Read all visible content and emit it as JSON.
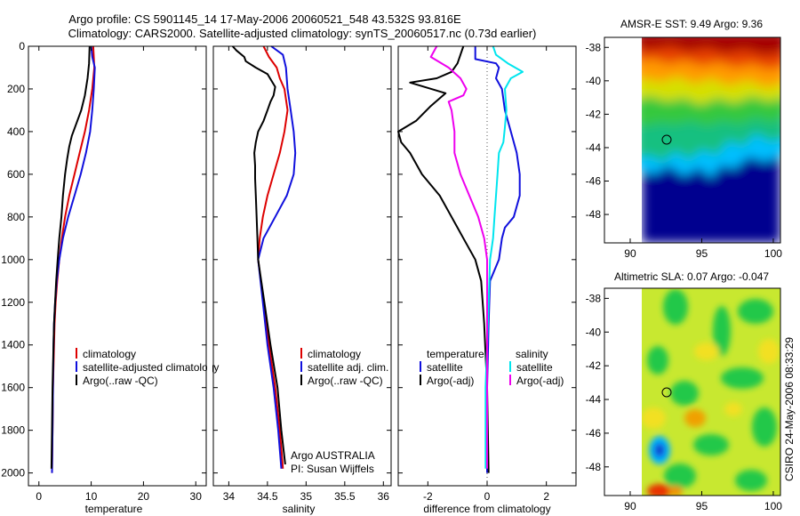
{
  "title_line1": "Argo profile: CS 5901145_14 17-May-2006 20060521_548 43.532S 93.816E",
  "title_line2": "Climatology: CARS2000. Satellite-adjusted climatology: synTS_20060517.nc (0.73d earlier)",
  "side_credit": "CSIRO 24-May-2006 08:33:29",
  "colors": {
    "climatology": "#dd0000",
    "satellite": "#1010dd",
    "argo": "#000000",
    "satellite_sal": "#00e5ee",
    "argo_sal": "#ee00ee"
  },
  "chart_data": [
    {
      "type": "line",
      "xlabel": "temperature",
      "ylabel": "",
      "xlim": [
        -2,
        32
      ],
      "ylim": [
        2060,
        0
      ],
      "x_ticks": [
        "0",
        "10",
        "20",
        "30"
      ],
      "y_ticks": [
        "0",
        "200",
        "400",
        "600",
        "800",
        "1000",
        "1200",
        "1400",
        "1600",
        "1800",
        "2000"
      ],
      "legend": {
        "position": "right-middle",
        "entries": [
          "climatology",
          "satellite-adjusted climatology",
          "Argo(..raw -QC)"
        ]
      },
      "series": [
        {
          "name": "climatology",
          "color": "#dd0000",
          "points": [
            [
              10.4,
              0
            ],
            [
              10.5,
              50
            ],
            [
              10.6,
              100
            ],
            [
              10.2,
              200
            ],
            [
              9.6,
              300
            ],
            [
              8.8,
              400
            ],
            [
              7.8,
              500
            ],
            [
              6.8,
              600
            ],
            [
              5.8,
              700
            ],
            [
              5.0,
              800
            ],
            [
              4.4,
              900
            ],
            [
              3.9,
              1000
            ],
            [
              3.5,
              1100
            ],
            [
              3.2,
              1200
            ],
            [
              3.0,
              1300
            ],
            [
              2.9,
              1400
            ],
            [
              2.7,
              1600
            ],
            [
              2.6,
              1800
            ],
            [
              2.5,
              2000
            ]
          ]
        },
        {
          "name": "satellite-adjusted climatology",
          "color": "#1010dd",
          "points": [
            [
              10.0,
              0
            ],
            [
              10.2,
              50
            ],
            [
              10.7,
              100
            ],
            [
              10.5,
              200
            ],
            [
              10.2,
              300
            ],
            [
              9.8,
              400
            ],
            [
              9.0,
              500
            ],
            [
              8.0,
              600
            ],
            [
              6.8,
              700
            ],
            [
              5.6,
              800
            ],
            [
              4.6,
              900
            ],
            [
              3.9,
              1000
            ],
            [
              3.4,
              1100
            ],
            [
              3.1,
              1200
            ],
            [
              2.9,
              1300
            ],
            [
              2.8,
              1400
            ],
            [
              2.7,
              1600
            ],
            [
              2.6,
              1800
            ],
            [
              2.5,
              2000
            ]
          ]
        },
        {
          "name": "Argo(..raw -QC)",
          "color": "#000000",
          "points": [
            [
              9.7,
              0
            ],
            [
              9.6,
              80
            ],
            [
              9.3,
              150
            ],
            [
              8.8,
              230
            ],
            [
              8.1,
              300
            ],
            [
              7.2,
              360
            ],
            [
              6.3,
              420
            ],
            [
              5.8,
              470
            ],
            [
              5.4,
              530
            ],
            [
              5.0,
              600
            ],
            [
              4.6,
              700
            ],
            [
              4.3,
              800
            ],
            [
              3.9,
              900
            ],
            [
              3.6,
              1000
            ],
            [
              3.3,
              1100
            ],
            [
              3.1,
              1200
            ],
            [
              2.9,
              1300
            ],
            [
              2.8,
              1400
            ],
            [
              2.6,
              1600
            ],
            [
              2.5,
              1800
            ],
            [
              2.4,
              1980
            ]
          ]
        }
      ]
    },
    {
      "type": "line",
      "xlabel": "salinity",
      "ylabel": "",
      "xlim": [
        33.8,
        36.1
      ],
      "ylim": [
        2060,
        0
      ],
      "x_ticks": [
        "34",
        "34.5",
        "35",
        "35.5",
        "36"
      ],
      "legend": {
        "position": "right-middle",
        "entries": [
          "climatology",
          "satellite adj. clim.",
          "Argo(..raw -QC)"
        ]
      },
      "annotations": [
        "Argo AUSTRALIA",
        "PI: Susan Wijffels"
      ],
      "series": [
        {
          "name": "climatology",
          "color": "#dd0000",
          "points": [
            [
              34.45,
              0
            ],
            [
              34.52,
              50
            ],
            [
              34.62,
              100
            ],
            [
              34.66,
              150
            ],
            [
              34.72,
              200
            ],
            [
              34.76,
              300
            ],
            [
              34.72,
              400
            ],
            [
              34.66,
              500
            ],
            [
              34.58,
              600
            ],
            [
              34.5,
              700
            ],
            [
              34.44,
              800
            ],
            [
              34.4,
              900
            ],
            [
              34.38,
              1000
            ],
            [
              34.45,
              1200
            ],
            [
              34.52,
              1400
            ],
            [
              34.6,
              1600
            ],
            [
              34.66,
              1800
            ],
            [
              34.7,
              1980
            ]
          ]
        },
        {
          "name": "satellite adj. clim.",
          "color": "#1010dd",
          "points": [
            [
              34.55,
              0
            ],
            [
              34.7,
              40
            ],
            [
              34.74,
              100
            ],
            [
              34.76,
              200
            ],
            [
              34.8,
              300
            ],
            [
              34.84,
              400
            ],
            [
              34.86,
              500
            ],
            [
              34.84,
              600
            ],
            [
              34.75,
              700
            ],
            [
              34.6,
              800
            ],
            [
              34.45,
              900
            ],
            [
              34.38,
              1000
            ],
            [
              34.44,
              1200
            ],
            [
              34.5,
              1400
            ],
            [
              34.58,
              1600
            ],
            [
              34.64,
              1800
            ],
            [
              34.68,
              1980
            ]
          ]
        },
        {
          "name": "Argo(..raw -QC)",
          "color": "#000000",
          "points": [
            [
              34.05,
              0
            ],
            [
              34.1,
              20
            ],
            [
              34.2,
              50
            ],
            [
              34.22,
              70
            ],
            [
              34.35,
              100
            ],
            [
              34.5,
              130
            ],
            [
              34.55,
              160
            ],
            [
              34.6,
              190
            ],
            [
              34.58,
              230
            ],
            [
              34.54,
              260
            ],
            [
              34.5,
              300
            ],
            [
              34.45,
              350
            ],
            [
              34.38,
              400
            ],
            [
              34.35,
              450
            ],
            [
              34.33,
              500
            ],
            [
              34.34,
              560
            ],
            [
              34.34,
              620
            ],
            [
              34.35,
              700
            ],
            [
              34.36,
              800
            ],
            [
              34.37,
              900
            ],
            [
              34.38,
              1000
            ],
            [
              34.46,
              1200
            ],
            [
              34.54,
              1400
            ],
            [
              34.63,
              1600
            ],
            [
              34.68,
              1800
            ],
            [
              34.73,
              1960
            ]
          ]
        }
      ]
    },
    {
      "type": "line",
      "xlabel": "difference from climatology",
      "ylabel": "",
      "xlim": [
        -3,
        3
      ],
      "ylim": [
        2060,
        0
      ],
      "x_ticks": [
        "-2",
        "0",
        "2"
      ],
      "legend": {
        "position": "bottom",
        "temperature_title": "temperature",
        "salinity_title": "salinity",
        "entries": [
          "satellite",
          "Argo(-adj)",
          "satellite",
          "Argo(-adj)"
        ]
      },
      "series": [
        {
          "name": "temperature satellite",
          "color": "#1010dd",
          "points": [
            [
              -0.4,
              0
            ],
            [
              -0.4,
              60
            ],
            [
              0.3,
              80
            ],
            [
              0.4,
              100
            ],
            [
              0.3,
              150
            ],
            [
              0.5,
              200
            ],
            [
              0.6,
              300
            ],
            [
              0.8,
              400
            ],
            [
              1.0,
              500
            ],
            [
              1.1,
              600
            ],
            [
              1.1,
              700
            ],
            [
              0.9,
              800
            ],
            [
              0.6,
              850
            ],
            [
              0.5,
              900
            ],
            [
              0.4,
              1000
            ],
            [
              0.1,
              1100
            ],
            [
              0.05,
              1300
            ],
            [
              0.0,
              1600
            ],
            [
              0.0,
              2000
            ]
          ]
        },
        {
          "name": "temperature Argo(-adj)",
          "color": "#000000",
          "points": [
            [
              -0.8,
              0
            ],
            [
              -0.9,
              40
            ],
            [
              -1.0,
              80
            ],
            [
              -1.2,
              120
            ],
            [
              -1.7,
              150
            ],
            [
              -2.6,
              170
            ],
            [
              -1.4,
              220
            ],
            [
              -1.9,
              280
            ],
            [
              -2.4,
              350
            ],
            [
              -3.0,
              400
            ],
            [
              -2.9,
              450
            ],
            [
              -2.6,
              500
            ],
            [
              -2.2,
              600
            ],
            [
              -1.6,
              700
            ],
            [
              -1.2,
              800
            ],
            [
              -0.8,
              900
            ],
            [
              -0.4,
              1000
            ],
            [
              -0.2,
              1100
            ],
            [
              -0.1,
              1300
            ],
            [
              0.0,
              1600
            ],
            [
              0.05,
              2000
            ]
          ]
        },
        {
          "name": "salinity satellite",
          "color": "#00e5ee",
          "points": [
            [
              0.2,
              0
            ],
            [
              0.3,
              40
            ],
            [
              0.7,
              80
            ],
            [
              1.2,
              120
            ],
            [
              0.8,
              150
            ],
            [
              0.6,
              200
            ],
            [
              0.65,
              300
            ],
            [
              0.6,
              380
            ],
            [
              0.55,
              450
            ],
            [
              0.4,
              500
            ],
            [
              0.35,
              600
            ],
            [
              0.3,
              700
            ],
            [
              0.25,
              800
            ],
            [
              0.2,
              900
            ],
            [
              0.1,
              1000
            ],
            [
              0.05,
              1200
            ],
            [
              0.0,
              1400
            ],
            [
              -0.05,
              1600
            ],
            [
              -0.05,
              1980
            ]
          ]
        },
        {
          "name": "salinity Argo(-adj)",
          "color": "#ee00ee",
          "points": [
            [
              -1.7,
              0
            ],
            [
              -1.9,
              50
            ],
            [
              -1.3,
              100
            ],
            [
              -0.9,
              150
            ],
            [
              -0.7,
              200
            ],
            [
              -0.8,
              230
            ],
            [
              -1.3,
              260
            ],
            [
              -1.2,
              300
            ],
            [
              -1.1,
              400
            ],
            [
              -1.1,
              500
            ],
            [
              -0.9,
              600
            ],
            [
              -0.6,
              700
            ],
            [
              -0.3,
              800
            ],
            [
              -0.1,
              900
            ],
            [
              0.0,
              1000
            ],
            [
              0.0,
              1200
            ],
            [
              0.0,
              1400
            ],
            [
              0.0,
              1600
            ],
            [
              0.0,
              1980
            ]
          ]
        }
      ]
    },
    {
      "type": "heatmap",
      "title": "AMSR-E SST: 9.49 Argo: 9.36",
      "xlim": [
        88.2,
        100.5
      ],
      "ylim": [
        -49.7,
        -37.4
      ],
      "x_ticks": [
        "90",
        "95",
        "100"
      ],
      "y_ticks": [
        "-38",
        "-40",
        "-42",
        "-44",
        "-46",
        "-48"
      ],
      "data_region": {
        "lon": [
          90,
          100.5
        ],
        "lat": [
          -49.7,
          -37.4
        ]
      },
      "marker": {
        "lon": 93.816,
        "lat": -43.532
      },
      "colormap": "jet"
    },
    {
      "type": "heatmap",
      "title": "Altimetric SLA: 0.07 Argo: -0.047",
      "xlim": [
        88.2,
        100.5
      ],
      "ylim": [
        -49.7,
        -37.4
      ],
      "x_ticks": [
        "90",
        "95",
        "100"
      ],
      "y_ticks": [
        "-38",
        "-40",
        "-42",
        "-44",
        "-46",
        "-48"
      ],
      "data_region": {
        "lon": [
          90,
          100.5
        ],
        "lat": [
          -49.7,
          -37.4
        ]
      },
      "marker": {
        "lon": 93.816,
        "lat": -43.532
      },
      "colormap": "jet"
    }
  ]
}
